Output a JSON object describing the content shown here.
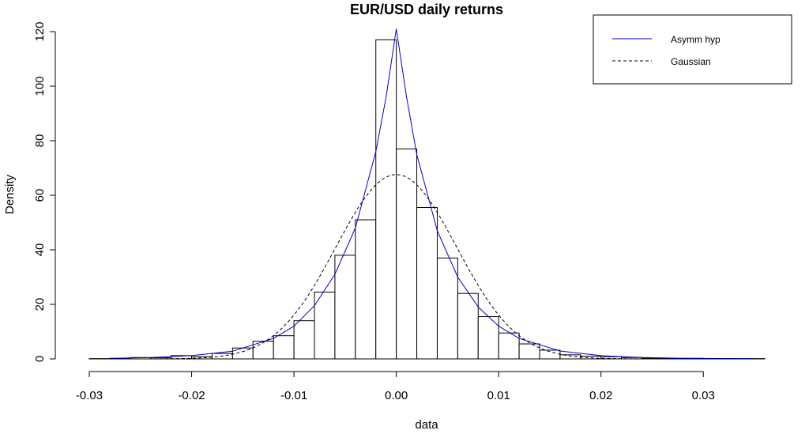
{
  "chart_data": {
    "type": "histogram",
    "title": "EUR/USD daily returns",
    "xlabel": "data",
    "ylabel": "Density",
    "xlim": [
      -0.03,
      0.036
    ],
    "ylim": [
      0,
      120
    ],
    "x_ticks": [
      -0.03,
      -0.02,
      -0.01,
      0.0,
      0.01,
      0.02,
      0.03
    ],
    "x_tick_labels": [
      "-0.03",
      "-0.02",
      "-0.01",
      "0.00",
      "0.01",
      "0.02",
      "0.03"
    ],
    "y_ticks": [
      0,
      20,
      40,
      60,
      80,
      100,
      120
    ],
    "y_tick_labels": [
      "0",
      "20",
      "40",
      "60",
      "80",
      "100",
      "120"
    ],
    "bin_edges": [
      -0.03,
      -0.028,
      -0.026,
      -0.024,
      -0.022,
      -0.02,
      -0.018,
      -0.016,
      -0.014,
      -0.012,
      -0.01,
      -0.008,
      -0.006,
      -0.004,
      -0.002,
      0.0,
      0.002,
      0.004,
      0.006,
      0.008,
      0.01,
      0.012,
      0.014,
      0.016,
      0.018,
      0.02,
      0.022,
      0.024,
      0.026,
      0.028,
      0.03,
      0.032,
      0.034,
      0.036
    ],
    "densities": [
      0.1,
      0.1,
      0.5,
      0.4,
      1.2,
      0.8,
      2.0,
      4.0,
      6.5,
      8.5,
      14.0,
      24.5,
      38.0,
      51.0,
      117.0,
      77.0,
      55.5,
      37.0,
      24.0,
      15.5,
      9.5,
      5.5,
      3.2,
      1.5,
      1.0,
      0.8,
      0.5,
      0.3,
      0.2,
      0.2,
      0.1,
      0.1,
      0.1
    ],
    "series": [
      {
        "name": "Asymm hyp",
        "color": "#0000cd",
        "line_style": "solid",
        "x": [
          -0.028,
          -0.024,
          -0.02,
          -0.016,
          -0.012,
          -0.01,
          -0.008,
          -0.006,
          -0.004,
          -0.002,
          -0.001,
          0.0,
          0.001,
          0.002,
          0.004,
          0.006,
          0.008,
          0.01,
          0.012,
          0.016,
          0.02,
          0.024,
          0.028,
          0.035
        ],
        "y": [
          0.2,
          0.5,
          1.2,
          2.8,
          7.5,
          12.0,
          19.5,
          31.0,
          48.0,
          76.0,
          96.0,
          121.0,
          96.0,
          75.0,
          47.0,
          30.0,
          19.0,
          12.0,
          7.5,
          2.9,
          1.2,
          0.5,
          0.2,
          0.1
        ]
      },
      {
        "name": "Gaussian",
        "color": "#000000",
        "line_style": "dashed",
        "mean": 0.0,
        "sd": 0.0059
      }
    ],
    "legend": {
      "position": "top-right",
      "entries": [
        "Asymm hyp",
        "Gaussian"
      ]
    },
    "grid": false
  }
}
